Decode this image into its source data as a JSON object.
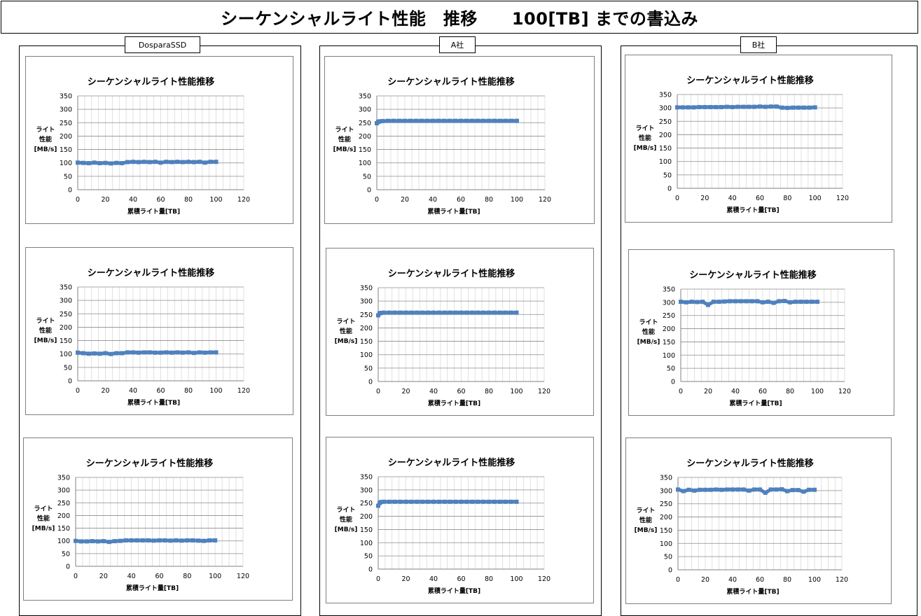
{
  "page": {
    "title": "シーケンシャルライト性能　推移　　100[TB] までの書込み"
  },
  "groups": [
    {
      "label": "DosparaSSD"
    },
    {
      "label": "A社"
    },
    {
      "label": "B社"
    }
  ],
  "chart_data": [
    {
      "group": "DosparaSSD",
      "type": "scatter",
      "title": "シーケンシャルライト性能推移",
      "xlabel": "累積ライト量[TB]",
      "ylabel": [
        "ライト",
        "性能",
        "[MB/s]"
      ],
      "xlim": [
        0,
        120
      ],
      "ylim": [
        0,
        350
      ],
      "xticks": [
        0,
        20,
        40,
        60,
        80,
        100,
        120
      ],
      "yticks": [
        0,
        50,
        100,
        150,
        200,
        250,
        300,
        350
      ],
      "grid": true,
      "series": [
        {
          "x": [
            0,
            4,
            8,
            12,
            16,
            20,
            24,
            28,
            32,
            36,
            40,
            44,
            48,
            52,
            56,
            60,
            64,
            68,
            72,
            76,
            80,
            84,
            88,
            92,
            96,
            100
          ],
          "y": [
            101,
            100,
            99,
            101,
            99,
            100,
            98,
            100,
            99,
            103,
            104,
            103,
            104,
            103,
            104,
            101,
            104,
            103,
            104,
            103,
            104,
            103,
            104,
            101,
            104,
            104
          ]
        }
      ],
      "color": "#4f81bd"
    },
    {
      "group": "DosparaSSD",
      "type": "scatter",
      "title": "シーケンシャルライト性能推移",
      "xlabel": "累積ライト量[TB]",
      "ylabel": [
        "ライト",
        "性能",
        "[MB/s]"
      ],
      "xlim": [
        0,
        120
      ],
      "ylim": [
        0,
        350
      ],
      "xticks": [
        0,
        20,
        40,
        60,
        80,
        100,
        120
      ],
      "yticks": [
        0,
        50,
        100,
        150,
        200,
        250,
        300,
        350
      ],
      "grid": true,
      "series": [
        {
          "x": [
            0,
            4,
            8,
            12,
            16,
            20,
            24,
            28,
            32,
            36,
            40,
            44,
            48,
            52,
            56,
            60,
            64,
            68,
            72,
            76,
            80,
            84,
            88,
            92,
            96,
            100
          ],
          "y": [
            105,
            103,
            101,
            102,
            101,
            103,
            100,
            103,
            103,
            106,
            106,
            105,
            106,
            106,
            105,
            105,
            106,
            105,
            106,
            105,
            106,
            104,
            106,
            105,
            106,
            106
          ]
        }
      ],
      "color": "#4f81bd"
    },
    {
      "group": "DosparaSSD",
      "type": "scatter",
      "title": "シーケンシャルライト性能推移",
      "xlabel": "累積ライト量[TB]",
      "ylabel": [
        "ライト",
        "性能",
        "[MB/s]"
      ],
      "xlim": [
        0,
        120
      ],
      "ylim": [
        0,
        350
      ],
      "xticks": [
        0,
        20,
        40,
        60,
        80,
        100,
        120
      ],
      "yticks": [
        0,
        50,
        100,
        150,
        200,
        250,
        300,
        350
      ],
      "grid": true,
      "series": [
        {
          "x": [
            0,
            4,
            8,
            12,
            16,
            20,
            24,
            28,
            32,
            36,
            40,
            44,
            48,
            52,
            56,
            60,
            64,
            68,
            72,
            76,
            80,
            84,
            88,
            92,
            96,
            100
          ],
          "y": [
            100,
            98,
            98,
            99,
            98,
            99,
            96,
            99,
            100,
            102,
            102,
            102,
            102,
            102,
            101,
            102,
            102,
            101,
            102,
            101,
            102,
            102,
            101,
            100,
            102,
            102
          ]
        }
      ],
      "color": "#4f81bd"
    },
    {
      "group": "A社",
      "type": "scatter",
      "title": "シーケンシャルライト性能推移",
      "xlabel": "累積ライト量[TB]",
      "ylabel": [
        "ライト",
        "性能",
        "[MB/s]"
      ],
      "xlim": [
        0,
        120
      ],
      "ylim": [
        0,
        350
      ],
      "xticks": [
        0,
        20,
        40,
        60,
        80,
        100,
        120
      ],
      "yticks": [
        0,
        50,
        100,
        150,
        200,
        250,
        300,
        350
      ],
      "grid": true,
      "series": [
        {
          "x": [
            0,
            1,
            2,
            4,
            8,
            12,
            16,
            20,
            24,
            28,
            32,
            36,
            40,
            44,
            48,
            52,
            56,
            60,
            64,
            68,
            72,
            76,
            80,
            84,
            88,
            92,
            96,
            100
          ],
          "y": [
            248,
            253,
            255,
            256,
            257,
            257,
            257,
            257,
            257,
            257,
            257,
            257,
            257,
            257,
            257,
            257,
            257,
            257,
            257,
            257,
            257,
            257,
            257,
            257,
            257,
            257,
            257,
            257
          ]
        }
      ],
      "color": "#4f81bd"
    },
    {
      "group": "A社",
      "type": "scatter",
      "title": "シーケンシャルライト性能推移",
      "xlabel": "累積ライト量[TB]",
      "ylabel": [
        "ライト",
        "性能",
        "[MB/s]"
      ],
      "xlim": [
        0,
        120
      ],
      "ylim": [
        0,
        350
      ],
      "xticks": [
        0,
        20,
        40,
        60,
        80,
        100,
        120
      ],
      "yticks": [
        0,
        50,
        100,
        150,
        200,
        250,
        300,
        350
      ],
      "grid": true,
      "series": [
        {
          "x": [
            0,
            1,
            2,
            4,
            8,
            12,
            16,
            20,
            24,
            28,
            32,
            36,
            40,
            44,
            48,
            52,
            56,
            60,
            64,
            68,
            72,
            76,
            80,
            84,
            88,
            92,
            96,
            100
          ],
          "y": [
            247,
            254,
            256,
            257,
            257,
            257,
            257,
            257,
            257,
            257,
            257,
            257,
            257,
            257,
            257,
            257,
            257,
            257,
            257,
            257,
            257,
            257,
            257,
            257,
            257,
            257,
            257,
            257
          ]
        }
      ],
      "color": "#4f81bd"
    },
    {
      "group": "A社",
      "type": "scatter",
      "title": "シーケンシャルライト性能推移",
      "xlabel": "累積ライト量[TB]",
      "ylabel": [
        "ライト",
        "性能",
        "[MB/s]"
      ],
      "xlim": [
        0,
        120
      ],
      "ylim": [
        0,
        350
      ],
      "xticks": [
        0,
        20,
        40,
        60,
        80,
        100,
        120
      ],
      "yticks": [
        0,
        50,
        100,
        150,
        200,
        250,
        300,
        350
      ],
      "grid": true,
      "series": [
        {
          "x": [
            0,
            1,
            2,
            4,
            8,
            12,
            16,
            20,
            24,
            28,
            32,
            36,
            40,
            44,
            48,
            52,
            56,
            60,
            64,
            68,
            72,
            76,
            80,
            84,
            88,
            92,
            96,
            100
          ],
          "y": [
            240,
            250,
            254,
            255,
            255,
            255,
            255,
            255,
            255,
            255,
            255,
            255,
            255,
            255,
            255,
            255,
            255,
            255,
            255,
            255,
            255,
            255,
            255,
            255,
            255,
            255,
            255,
            255
          ]
        }
      ],
      "color": "#4f81bd"
    },
    {
      "group": "B社",
      "type": "scatter",
      "title": "シーケンシャルライト性能推移",
      "xlabel": "累積ライト量[TB]",
      "ylabel": [
        "ライト",
        "性能",
        "[MB/s]"
      ],
      "xlim": [
        0,
        120
      ],
      "ylim": [
        0,
        350
      ],
      "xticks": [
        0,
        20,
        40,
        60,
        80,
        100,
        120
      ],
      "yticks": [
        0,
        50,
        100,
        150,
        200,
        250,
        300,
        350
      ],
      "grid": true,
      "series": [
        {
          "x": [
            0,
            4,
            8,
            12,
            16,
            20,
            24,
            28,
            32,
            36,
            40,
            44,
            48,
            52,
            56,
            60,
            64,
            68,
            72,
            76,
            80,
            84,
            88,
            92,
            96,
            100
          ],
          "y": [
            302,
            302,
            302,
            302,
            303,
            303,
            303,
            303,
            303,
            304,
            303,
            304,
            304,
            304,
            304,
            305,
            304,
            305,
            305,
            301,
            300,
            301,
            301,
            301,
            301,
            302
          ]
        }
      ],
      "color": "#4f81bd"
    },
    {
      "group": "B社",
      "type": "scatter",
      "title": "シーケンシャルライト性能推移",
      "xlabel": "累積ライト量[TB]",
      "ylabel": [
        "ライト",
        "性能",
        "[MB/s]"
      ],
      "xlim": [
        0,
        120
      ],
      "ylim": [
        0,
        350
      ],
      "xticks": [
        0,
        20,
        40,
        60,
        80,
        100,
        120
      ],
      "yticks": [
        0,
        50,
        100,
        150,
        200,
        250,
        300,
        350
      ],
      "grid": true,
      "series": [
        {
          "x": [
            0,
            4,
            8,
            12,
            16,
            20,
            24,
            28,
            32,
            36,
            40,
            44,
            48,
            52,
            56,
            60,
            64,
            68,
            72,
            76,
            80,
            84,
            88,
            92,
            96,
            100
          ],
          "y": [
            302,
            300,
            302,
            301,
            302,
            290,
            302,
            302,
            303,
            304,
            304,
            304,
            304,
            304,
            304,
            300,
            302,
            298,
            304,
            305,
            300,
            302,
            302,
            302,
            302,
            302
          ]
        }
      ],
      "color": "#4f81bd"
    },
    {
      "group": "B社",
      "type": "scatter",
      "title": "シーケンシャルライト性能推移",
      "xlabel": "累積ライト量[TB]",
      "ylabel": [
        "ライト",
        "性能",
        "[MB/s]"
      ],
      "xlim": [
        0,
        120
      ],
      "ylim": [
        0,
        350
      ],
      "xticks": [
        0,
        20,
        40,
        60,
        80,
        100,
        120
      ],
      "yticks": [
        0,
        50,
        100,
        150,
        200,
        250,
        300,
        350
      ],
      "grid": true,
      "series": [
        {
          "x": [
            0,
            4,
            8,
            12,
            16,
            20,
            24,
            28,
            32,
            36,
            40,
            44,
            48,
            52,
            56,
            60,
            64,
            68,
            72,
            76,
            80,
            84,
            88,
            92,
            96,
            100
          ],
          "y": [
            304,
            298,
            303,
            300,
            303,
            303,
            303,
            304,
            303,
            304,
            304,
            304,
            304,
            300,
            304,
            304,
            292,
            304,
            304,
            305,
            298,
            302,
            302,
            296,
            303,
            303
          ]
        }
      ],
      "color": "#4f81bd"
    }
  ]
}
